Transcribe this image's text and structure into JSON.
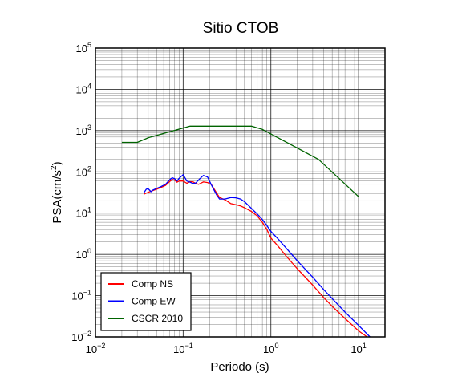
{
  "chart_data": {
    "type": "line",
    "title": "Sitio CTOB",
    "xlabel": "Periodo (s)",
    "ylabel": {
      "base": "PSA(cm/s",
      "sup": "2",
      "tail": ")"
    },
    "x_scale": "log",
    "y_scale": "log",
    "xlim": [
      0.01,
      20
    ],
    "ylim": [
      0.01,
      100000
    ],
    "grid": true,
    "legend_position": "bottom-left",
    "x_ticks": [
      {
        "value": 0.01,
        "base": "10",
        "exp": "−2"
      },
      {
        "value": 0.1,
        "base": "10",
        "exp": "−1"
      },
      {
        "value": 1,
        "base": "10",
        "exp": "0"
      },
      {
        "value": 10,
        "base": "10",
        "exp": "1"
      }
    ],
    "y_ticks": [
      {
        "value": 0.01,
        "base": "10",
        "exp": "−2"
      },
      {
        "value": 0.1,
        "base": "10",
        "exp": "−1"
      },
      {
        "value": 1,
        "base": "10",
        "exp": "0"
      },
      {
        "value": 10,
        "base": "10",
        "exp": "1"
      },
      {
        "value": 100,
        "base": "10",
        "exp": "2"
      },
      {
        "value": 1000,
        "base": "10",
        "exp": "3"
      },
      {
        "value": 10000,
        "base": "10",
        "exp": "4"
      },
      {
        "value": 100000,
        "base": "10",
        "exp": "5"
      }
    ],
    "series": [
      {
        "name": "Comp NS",
        "color": "#ff0000",
        "x": [
          0.036,
          0.04,
          0.045,
          0.05,
          0.056,
          0.063,
          0.07,
          0.075,
          0.08,
          0.085,
          0.09,
          0.1,
          0.11,
          0.12,
          0.13,
          0.14,
          0.15,
          0.17,
          0.19,
          0.21,
          0.24,
          0.26,
          0.3,
          0.35,
          0.4,
          0.45,
          0.5,
          0.6,
          0.7,
          0.8,
          0.9,
          1.0,
          1.2,
          1.5,
          2.0,
          3.0,
          4.0,
          5.0,
          7.0,
          10.0,
          12.5
        ],
        "y": [
          29,
          32,
          35,
          38,
          42,
          47,
          58,
          66,
          63,
          56,
          60,
          60,
          53,
          58,
          57,
          52,
          50,
          57,
          55,
          49,
          31,
          24,
          21,
          17,
          16,
          15,
          13.5,
          11,
          8.5,
          6,
          4,
          2.5,
          1.6,
          0.9,
          0.45,
          0.18,
          0.09,
          0.055,
          0.028,
          0.014,
          0.01
        ]
      },
      {
        "name": "Comp EW",
        "color": "#0000ff",
        "x": [
          0.036,
          0.038,
          0.04,
          0.043,
          0.045,
          0.05,
          0.056,
          0.063,
          0.07,
          0.075,
          0.08,
          0.085,
          0.09,
          0.1,
          0.11,
          0.12,
          0.13,
          0.14,
          0.15,
          0.17,
          0.19,
          0.21,
          0.24,
          0.26,
          0.3,
          0.35,
          0.4,
          0.45,
          0.5,
          0.6,
          0.7,
          0.8,
          0.9,
          1.0,
          1.2,
          1.5,
          2.0,
          3.0,
          4.0,
          5.0,
          7.0,
          10.0,
          13.5
        ],
        "y": [
          32,
          38,
          39,
          33,
          36,
          40,
          44,
          50,
          64,
          72,
          68,
          60,
          70,
          86,
          60,
          56,
          52,
          54,
          64,
          82,
          75,
          48,
          28,
          22,
          22,
          24,
          23.5,
          22,
          19,
          13,
          9.5,
          7,
          5,
          3.6,
          2.4,
          1.4,
          0.7,
          0.28,
          0.14,
          0.085,
          0.04,
          0.019,
          0.01
        ]
      },
      {
        "name": "CSCR 2010",
        "color": "#006400",
        "x": [
          0.02,
          0.03,
          0.0405,
          0.12,
          0.6,
          0.8,
          3.5,
          10.0
        ],
        "y": [
          520,
          520,
          680,
          1280,
          1280,
          1070,
          200,
          25
        ]
      }
    ]
  }
}
